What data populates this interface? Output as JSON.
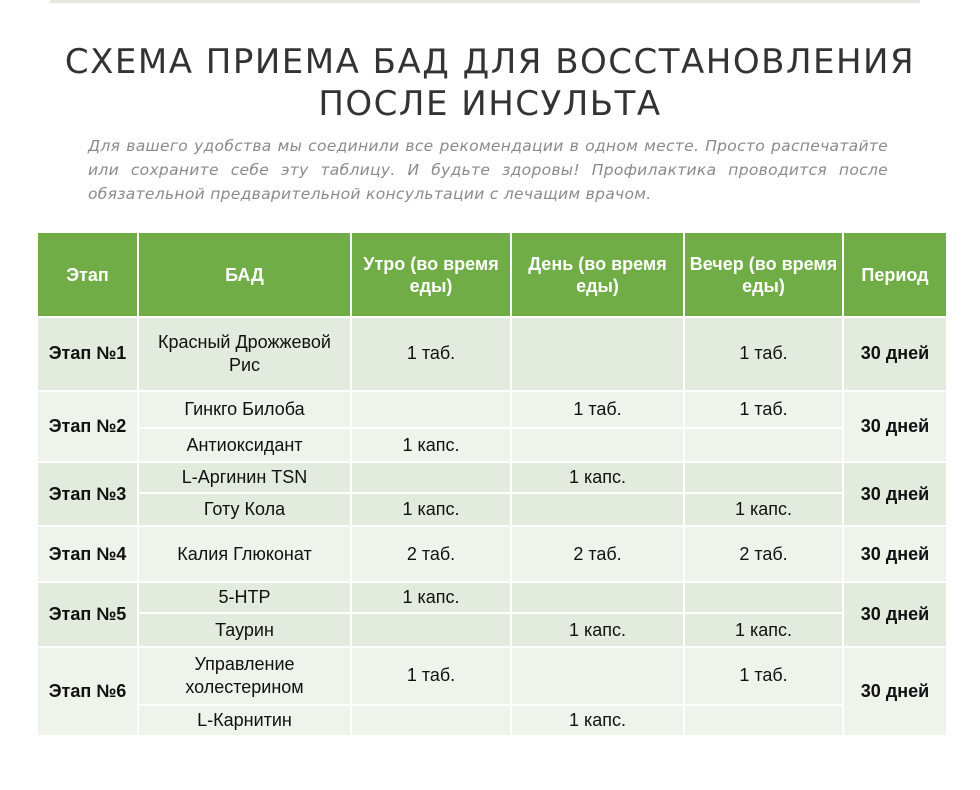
{
  "title": {
    "line1": "СХЕМА ПРИЕМА БАД ДЛЯ ВОССТАНОВЛЕНИЯ",
    "line2": "ПОСЛЕ ИНСУЛЬТА"
  },
  "subtitle": "Для вашего удобства мы соединили все рекомендации в одном месте. Просто распечатайте или сохраните себе эту таблицу. И будьте здоровы! Профилактика проводится после обязательной предварительной консультации с лечащим врачом.",
  "table": {
    "headers": {
      "stage": "Этап",
      "supplement": "БАД",
      "morning": "Утро (во время еды)",
      "day": "День (во время еды)",
      "evening": "Вечер (во время еды)",
      "period": "Период"
    },
    "stages": [
      {
        "stage": "Этап №1",
        "period": "30 дней",
        "items": [
          {
            "name": "Красный Дрожжевой Рис",
            "morning": "1 таб.",
            "day": "",
            "evening": "1 таб."
          }
        ]
      },
      {
        "stage": "Этап №2",
        "period": "30 дней",
        "items": [
          {
            "name": "Гинкго Билоба",
            "morning": "",
            "day": "1 таб.",
            "evening": "1 таб."
          },
          {
            "name": "Антиоксидант",
            "morning": "1 капс.",
            "day": "",
            "evening": ""
          }
        ]
      },
      {
        "stage": "Этап №3",
        "period": "30 дней",
        "items": [
          {
            "name": "L-Аргинин TSN",
            "morning": "",
            "day": "1 капс.",
            "evening": ""
          },
          {
            "name": "Готу Кола",
            "morning": "1 капс.",
            "day": "",
            "evening": "1 капс."
          }
        ]
      },
      {
        "stage": "Этап №4",
        "period": "30 дней",
        "items": [
          {
            "name": "Калия Глюконат",
            "morning": "2 таб.",
            "day": "2 таб.",
            "evening": "2 таб."
          }
        ]
      },
      {
        "stage": "Этап №5",
        "period": "30 дней",
        "items": [
          {
            "name": "5-HTP",
            "morning": "1 капс.",
            "day": "",
            "evening": ""
          },
          {
            "name": "Таурин",
            "morning": "",
            "day": "1 капс.",
            "evening": "1 капс."
          }
        ]
      },
      {
        "stage": "Этап №6",
        "period": "30 дней",
        "items": [
          {
            "name": "Управление холестерином",
            "morning": "1 таб.",
            "day": "",
            "evening": "1 таб."
          },
          {
            "name": "L-Карнитин",
            "morning": "",
            "day": "1 капс.",
            "evening": ""
          }
        ]
      }
    ]
  }
}
